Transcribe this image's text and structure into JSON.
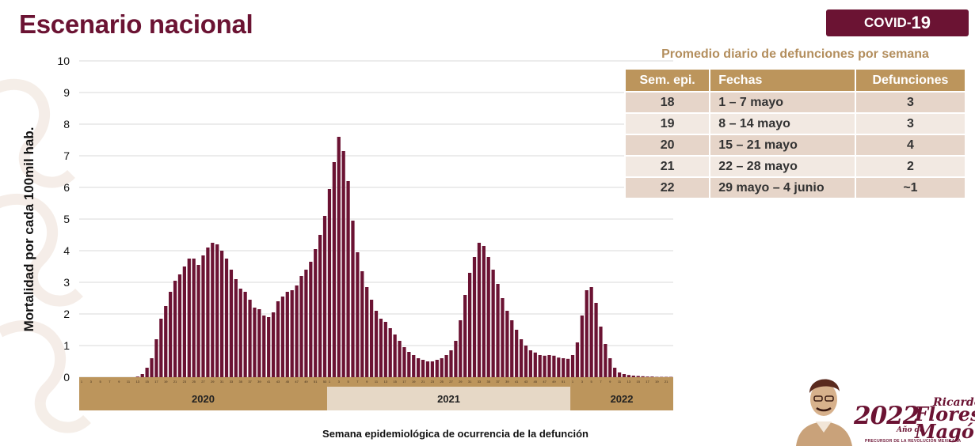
{
  "title": "Escenario nacional",
  "badge": {
    "prefix": "COVID-",
    "number": "19"
  },
  "table": {
    "caption": "Promedio diario de defunciones por semana",
    "headers": [
      "Sem. epi.",
      "Fechas",
      "Defunciones"
    ],
    "rows": [
      {
        "week": "18",
        "dates": "1 – 7 mayo",
        "deaths": "3"
      },
      {
        "week": "19",
        "dates": "8 – 14 mayo",
        "deaths": "3"
      },
      {
        "week": "20",
        "dates": "15 – 21 mayo",
        "deaths": "4"
      },
      {
        "week": "21",
        "dates": "22 – 28 mayo",
        "deaths": "2"
      },
      {
        "week": "22",
        "dates": "29 mayo – 4 junio",
        "deaths": "~1"
      }
    ]
  },
  "logo": {
    "year": "2022",
    "name_first": "Ricardo",
    "anio_de": "Año de",
    "name_last1": "Flores",
    "name_last2": "Magón",
    "subtitle": "PRECURSOR DE LA REVOLUCIÓN MEXICANA"
  },
  "colors": {
    "primary": "#6b1333",
    "gold": "#bc955c",
    "gold_light": "#e6d8c6",
    "grid": "#d9d9d9"
  },
  "chart_data": {
    "type": "bar",
    "title": "",
    "xlabel": "Semana epidemiológica de ocurrencia de la defunción",
    "ylabel": "Mortalidad por cada 100mil hab.",
    "ylim": [
      0,
      10
    ],
    "yticks": [
      0,
      1,
      2,
      3,
      4,
      5,
      6,
      7,
      8,
      9,
      10
    ],
    "grid": true,
    "years": [
      {
        "label": "2020",
        "weeks": 53,
        "start_week": 1
      },
      {
        "label": "2021",
        "weeks": 52,
        "start_week": 1
      },
      {
        "label": "2022",
        "weeks": 22,
        "start_week": 1
      }
    ],
    "series": [
      {
        "name": "Mortalidad por cada 100mil hab.",
        "values": [
          0,
          0,
          0,
          0,
          0,
          0,
          0,
          0,
          0,
          0,
          0,
          0,
          0.02,
          0.1,
          0.3,
          0.6,
          1.2,
          1.85,
          2.25,
          2.7,
          3.05,
          3.25,
          3.5,
          3.75,
          3.75,
          3.55,
          3.85,
          4.1,
          4.25,
          4.2,
          4.0,
          3.75,
          3.4,
          3.1,
          2.8,
          2.7,
          2.45,
          2.2,
          2.15,
          1.95,
          1.9,
          2.05,
          2.4,
          2.55,
          2.7,
          2.75,
          2.9,
          3.2,
          3.4,
          3.65,
          4.05,
          4.5,
          5.1,
          5.95,
          6.8,
          7.6,
          7.15,
          6.2,
          4.95,
          3.95,
          3.35,
          2.85,
          2.45,
          2.1,
          1.85,
          1.75,
          1.55,
          1.35,
          1.15,
          0.95,
          0.8,
          0.7,
          0.6,
          0.55,
          0.5,
          0.5,
          0.55,
          0.6,
          0.7,
          0.85,
          1.15,
          1.8,
          2.6,
          3.3,
          3.8,
          4.25,
          4.15,
          3.8,
          3.4,
          2.95,
          2.5,
          2.1,
          1.8,
          1.5,
          1.2,
          1.0,
          0.85,
          0.78,
          0.7,
          0.68,
          0.7,
          0.68,
          0.62,
          0.6,
          0.58,
          0.7,
          1.1,
          1.95,
          2.75,
          2.85,
          2.35,
          1.6,
          1.05,
          0.6,
          0.3,
          0.15,
          0.1,
          0.07,
          0.05,
          0.04,
          0.03,
          0.02,
          0.02,
          0.01,
          0.01,
          0.01,
          0.01
        ]
      }
    ]
  }
}
